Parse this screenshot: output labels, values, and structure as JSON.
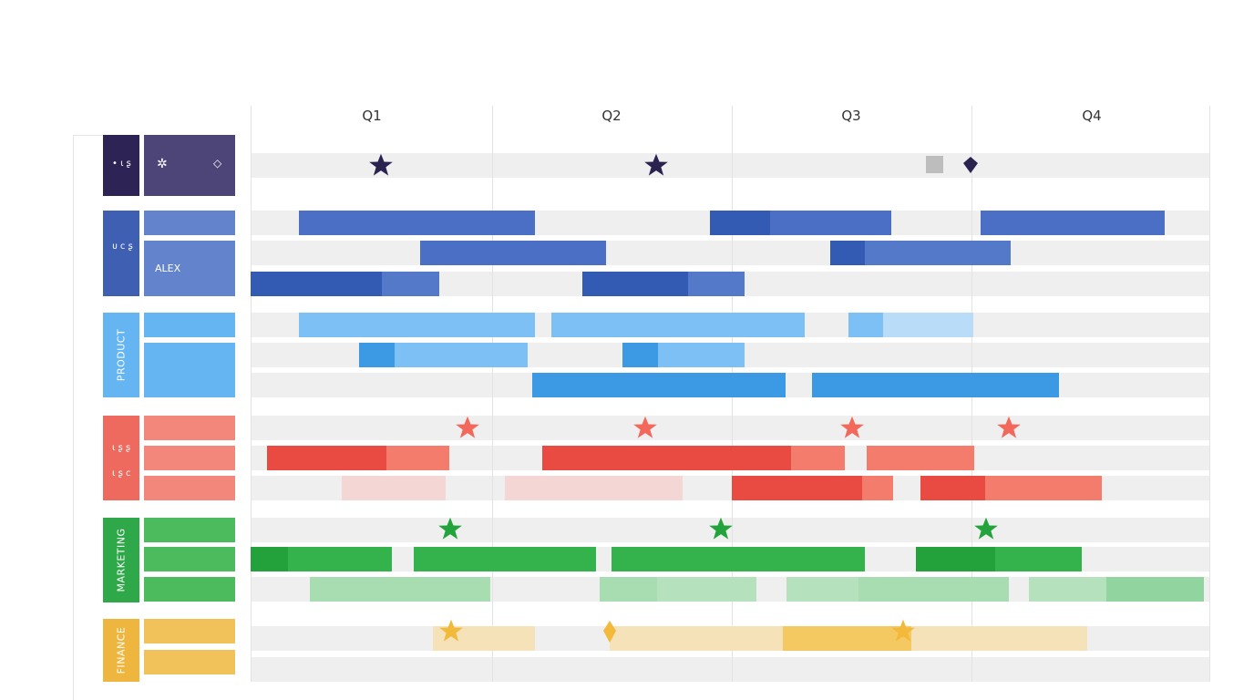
{
  "quarters": [
    "Q1",
    "Q2",
    "Q3",
    "Q4"
  ],
  "groups": [
    {
      "key": "top",
      "label": "",
      "color": "#2e2355",
      "sub_color": "#4d4478",
      "glyphs": [
        "• ɩ ʂ",
        "✲",
        "◇"
      ]
    },
    {
      "key": "blue",
      "label": "",
      "color": "#3f5fb3",
      "sub_color": "#6384cc",
      "glyphs": [
        "ᴜ ᴄ ʂ"
      ],
      "person": "ALEX"
    },
    {
      "key": "product",
      "label": "PRODUCT",
      "color": "#64b5f2",
      "sub_color": "#64b5f2"
    },
    {
      "key": "red",
      "label": "",
      "color": "#ee6a5e",
      "sub_color": "#f4877b",
      "glyphs": [
        "ɩ ʂ ʂ",
        "ɩ ʂ ᴄ"
      ]
    },
    {
      "key": "marketing",
      "label": "MARKETING",
      "color": "#2fa84a",
      "sub_color": "#4bbb5d"
    },
    {
      "key": "finance",
      "label": "FINANCE",
      "color": "#efb63f",
      "sub_color": "#f2c25a"
    }
  ],
  "colors": {
    "navy": "#2a2350",
    "blue_dark": "#345bb3",
    "blue": "#4a6fc4",
    "lightblue": "#7cc0f6",
    "lightblue_dark": "#3c99e3",
    "red": "#e94b43",
    "salmon": "#f47c6d",
    "pink_faint": "#f4d7d4",
    "green_dark": "#23a13a",
    "green": "#34b24c",
    "green_light": "#a8ddb2",
    "yellow": "#f4c962",
    "yellow_faint": "#f5e2b8",
    "gold": "#f2b93a",
    "grey": "#bdbdbd"
  },
  "milestones": {
    "top_row": [
      "star",
      "star",
      "square",
      "diamond"
    ],
    "red_row": [
      "star",
      "star",
      "star",
      "star"
    ],
    "green_row": [
      "star",
      "star",
      "star"
    ],
    "finance_row": [
      "star",
      "diamond",
      "star"
    ]
  }
}
